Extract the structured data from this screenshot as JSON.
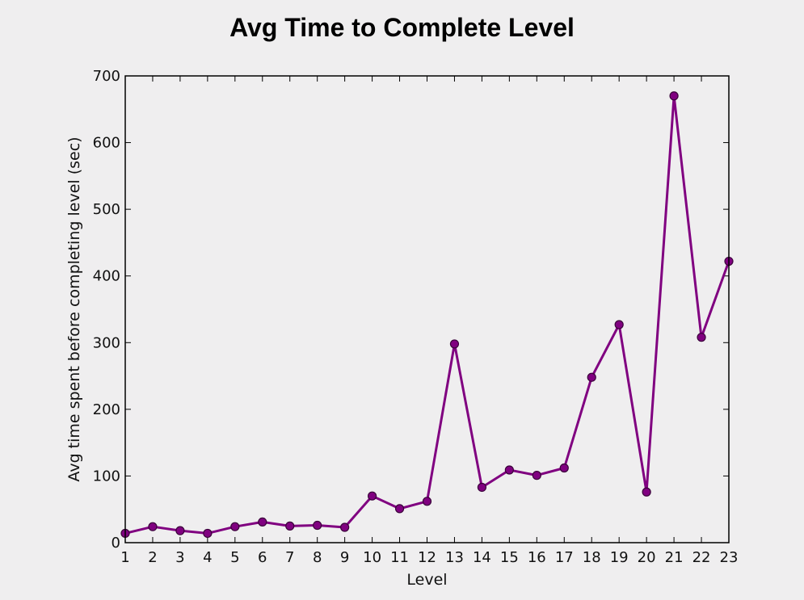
{
  "chart_data": {
    "type": "line",
    "title": "Avg Time to Complete Level",
    "xlabel": "Level",
    "ylabel": "Avg time spent before completing level (sec)",
    "x": [
      1,
      2,
      3,
      4,
      5,
      6,
      7,
      8,
      9,
      10,
      11,
      12,
      13,
      14,
      15,
      16,
      17,
      18,
      19,
      20,
      21,
      22,
      23
    ],
    "y": [
      14,
      24,
      18,
      14,
      24,
      31,
      25,
      26,
      23,
      70,
      51,
      62,
      298,
      83,
      109,
      101,
      112,
      248,
      327,
      76,
      670,
      308,
      422
    ],
    "xlim": [
      1,
      23
    ],
    "ylim": [
      0,
      700
    ],
    "xticks": [
      1,
      2,
      3,
      4,
      5,
      6,
      7,
      8,
      9,
      10,
      11,
      12,
      13,
      14,
      15,
      16,
      17,
      18,
      19,
      20,
      21,
      22,
      23
    ],
    "yticks": [
      0,
      100,
      200,
      300,
      400,
      500,
      600,
      700
    ],
    "grid": false,
    "line_color": "#800080",
    "marker_color": "#800080",
    "marker_edge_color": "#3a003a",
    "background_color": "#efeeef"
  }
}
